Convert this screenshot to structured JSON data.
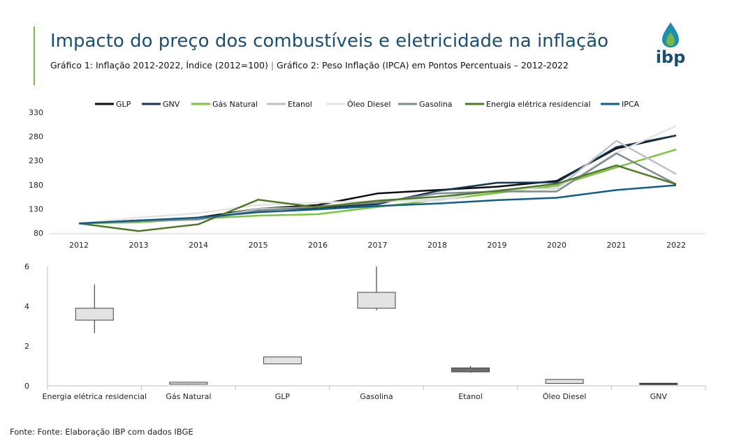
{
  "header": {
    "title": "Impacto do preço dos combustíveis e eletricidade na inflação",
    "subtitle_part1": "Gráfico 1: Inflação 2012-2022, Índice (2012=100)",
    "separator": "|",
    "subtitle_part2": "Gráfico 2: Peso Inflação (IPCA) em Pontos Percentuais – 2012-2022"
  },
  "logo": {
    "text": "ibp"
  },
  "source": "Fonte: Fonte: Elaboração IBP com dados IBGE",
  "colors": {
    "accent_bar": "#7ab648",
    "title": "#1b4f72",
    "drop_top": "#1f8fb0",
    "drop_bottom": "#7ab648"
  },
  "chart_data": [
    {
      "type": "line",
      "title": "Gráfico 1: Inflação 2012-2022, Índice (2012=100)",
      "xlabel": "",
      "ylabel": "",
      "ylim": [
        80,
        330
      ],
      "yticks": [
        "330",
        "280",
        "230",
        "180",
        "130",
        "80"
      ],
      "legend_position": "top",
      "categories": [
        "2012",
        "2013",
        "2014",
        "2015",
        "2016",
        "2017",
        "2018",
        "2019",
        "2020",
        "2021",
        "2022"
      ],
      "series": [
        {
          "name": "GLP",
          "color": "#0d0d0d",
          "values": [
            100,
            104,
            112,
            130,
            138,
            162,
            169,
            176,
            188,
            255,
            282
          ]
        },
        {
          "name": "GNV",
          "color": "#13334f",
          "values": [
            100,
            106,
            110,
            128,
            132,
            140,
            167,
            184,
            185,
            258,
            282
          ]
        },
        {
          "name": "Gás Natural",
          "color": "#7dc242",
          "values": [
            100,
            102,
            110,
            116,
            119,
            134,
            148,
            163,
            178,
            216,
            253
          ]
        },
        {
          "name": "Etanol",
          "color": "#bdc2c2",
          "values": [
            100,
            105,
            108,
            130,
            134,
            145,
            148,
            170,
            172,
            271,
            202
          ]
        },
        {
          "name": "Óleo Diesel",
          "color": "#e4e4e4",
          "values": [
            100,
            112,
            121,
            138,
            143,
            146,
            146,
            170,
            171,
            246,
            302
          ]
        },
        {
          "name": "Gasolina",
          "color": "#7f8c8d",
          "values": [
            100,
            105,
            108,
            126,
            135,
            143,
            162,
            166,
            166,
            245,
            181
          ]
        },
        {
          "name": "Energia elétrica residencial",
          "color": "#4f7728",
          "values": [
            100,
            84,
            98,
            149,
            133,
            147,
            155,
            167,
            182,
            220,
            181
          ]
        },
        {
          "name": "IPCA",
          "color": "#125d86",
          "values": [
            100,
            106,
            112,
            123,
            129,
            136,
            141,
            148,
            153,
            169,
            179
          ]
        }
      ]
    },
    {
      "type": "box",
      "title": "Gráfico 2: Peso Inflação (IPCA) em Pontos Percentuais – 2012-2022",
      "ylim": [
        0,
        6
      ],
      "yticks": [
        "6",
        "4",
        "2",
        "0"
      ],
      "categories": [
        "Energia elétrica residencial",
        "Gás Natural",
        "GLP",
        "Gasolina",
        "Etanol",
        "Óleo Diesel",
        "GNV"
      ],
      "boxes": [
        {
          "name": "Energia elétrica residencial",
          "min": 2.65,
          "q1": 3.3,
          "q3": 3.9,
          "max": 5.1,
          "fill": "#e3e3e3"
        },
        {
          "name": "Gás Natural",
          "min": 0.06,
          "q1": 0.08,
          "q3": 0.18,
          "max": 0.2,
          "fill": "#e3e3e3"
        },
        {
          "name": "GLP",
          "min": 1.1,
          "q1": 1.1,
          "q3": 1.45,
          "max": 1.45,
          "fill": "#e3e3e3"
        },
        {
          "name": "Gasolina",
          "min": 3.8,
          "q1": 3.9,
          "q3": 4.7,
          "max": 6.0,
          "fill": "#e3e3e3"
        },
        {
          "name": "Etanol",
          "min": 0.65,
          "q1": 0.7,
          "q3": 0.9,
          "max": 1.0,
          "fill": "#6e6e6e"
        },
        {
          "name": "Óleo Diesel",
          "min": 0.12,
          "q1": 0.12,
          "q3": 0.32,
          "max": 0.32,
          "fill": "#e3e3e3"
        },
        {
          "name": "GNV",
          "min": 0.06,
          "q1": 0.07,
          "q3": 0.13,
          "max": 0.14,
          "fill": "#333333"
        }
      ]
    }
  ]
}
